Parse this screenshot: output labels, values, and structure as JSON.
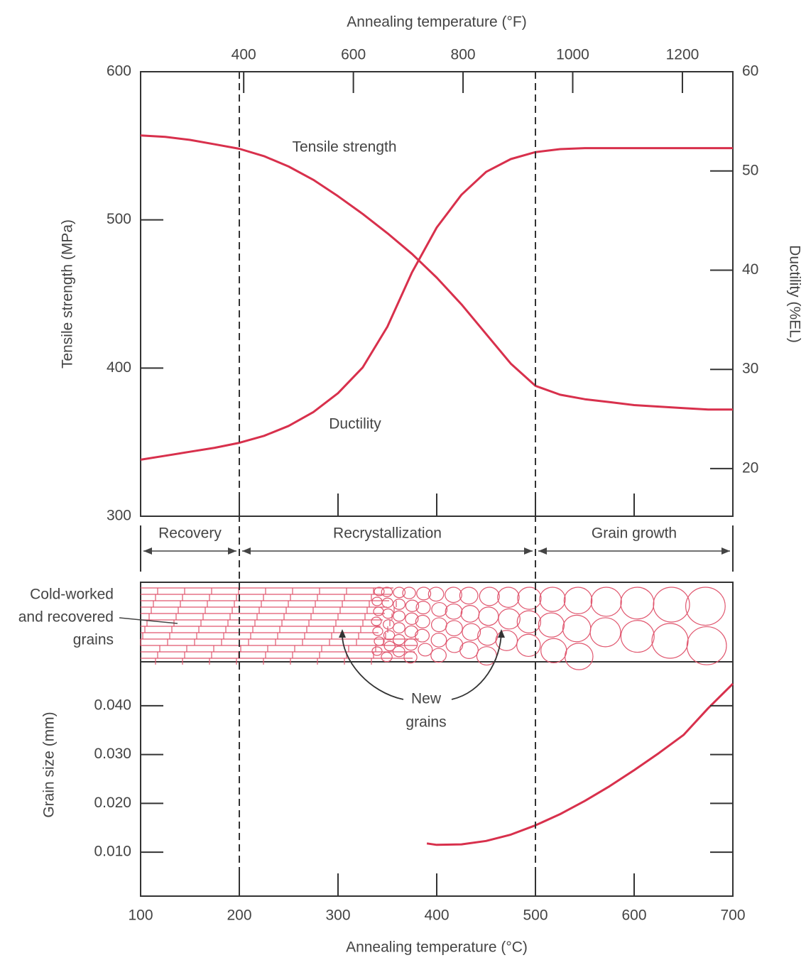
{
  "chart_data": [
    {
      "type": "line",
      "x2label": "Annealing temperature (°F)",
      "x2lim": [
        212,
        1292
      ],
      "x2ticks": [
        400,
        600,
        800,
        1000,
        1200
      ],
      "xlim": [
        100,
        700
      ],
      "ylabel": "Tensile strength (MPa)",
      "ylim": [
        300,
        600
      ],
      "yticks": [
        300,
        400,
        500,
        600
      ],
      "y2label": "Ductility (%EL)",
      "y2lim": [
        15.2,
        60
      ],
      "y2ticks": [
        20,
        30,
        40,
        50,
        60
      ],
      "x": [
        100,
        125,
        150,
        175,
        200,
        225,
        250,
        275,
        300,
        325,
        350,
        375,
        400,
        425,
        450,
        475,
        500,
        525,
        550,
        575,
        600,
        625,
        650,
        675,
        700
      ],
      "series": [
        {
          "name": "Tensile strength",
          "color": "#d8304c",
          "values": [
            557,
            556,
            554,
            551,
            548,
            543,
            536,
            527,
            516,
            504,
            491,
            477,
            461,
            443,
            423,
            403,
            388,
            382,
            379,
            377,
            375,
            374,
            373,
            372,
            372
          ]
        },
        {
          "name": "Ductility",
          "color": "#d8304c",
          "axis": "y2",
          "values": [
            20.9,
            21.3,
            21.7,
            22.1,
            22.6,
            23.3,
            24.3,
            25.7,
            27.6,
            30.2,
            34.3,
            39.8,
            44.3,
            47.6,
            49.9,
            51.2,
            51.9,
            52.2,
            52.3,
            52.3,
            52.3,
            52.3,
            52.3,
            52.3,
            52.3
          ]
        }
      ],
      "regions": [
        {
          "name": "Recovery",
          "from": 100,
          "to": 200
        },
        {
          "name": "Recrystallization",
          "from": 200,
          "to": 500
        },
        {
          "name": "Grain growth",
          "from": 500,
          "to": 700
        }
      ]
    },
    {
      "type": "line",
      "xlabel": "Annealing temperature (°C)",
      "xlim": [
        100,
        700
      ],
      "xticks": [
        100,
        200,
        300,
        400,
        500,
        600,
        700
      ],
      "ylabel": "Grain size (mm)",
      "ylim": [
        0.001,
        0.049
      ],
      "yticks": [
        {
          "value": 0.01,
          "label": "0.010"
        },
        {
          "value": 0.02,
          "label": "0.020"
        },
        {
          "value": 0.03,
          "label": "0.030"
        },
        {
          "value": 0.04,
          "label": "0.040"
        }
      ],
      "x": [
        390,
        400,
        425,
        450,
        475,
        500,
        525,
        550,
        575,
        600,
        625,
        650,
        675,
        700
      ],
      "series": [
        {
          "color": "#d8304c",
          "values": [
            0.0118,
            0.0115,
            0.0116,
            0.0123,
            0.0136,
            0.0155,
            0.0178,
            0.0205,
            0.0235,
            0.0268,
            0.0303,
            0.034,
            0.0395,
            0.0445
          ]
        }
      ],
      "annotation": [
        "New",
        "grains"
      ],
      "microstructure_label": [
        "Cold-worked",
        "and recovered",
        "grains"
      ]
    }
  ]
}
